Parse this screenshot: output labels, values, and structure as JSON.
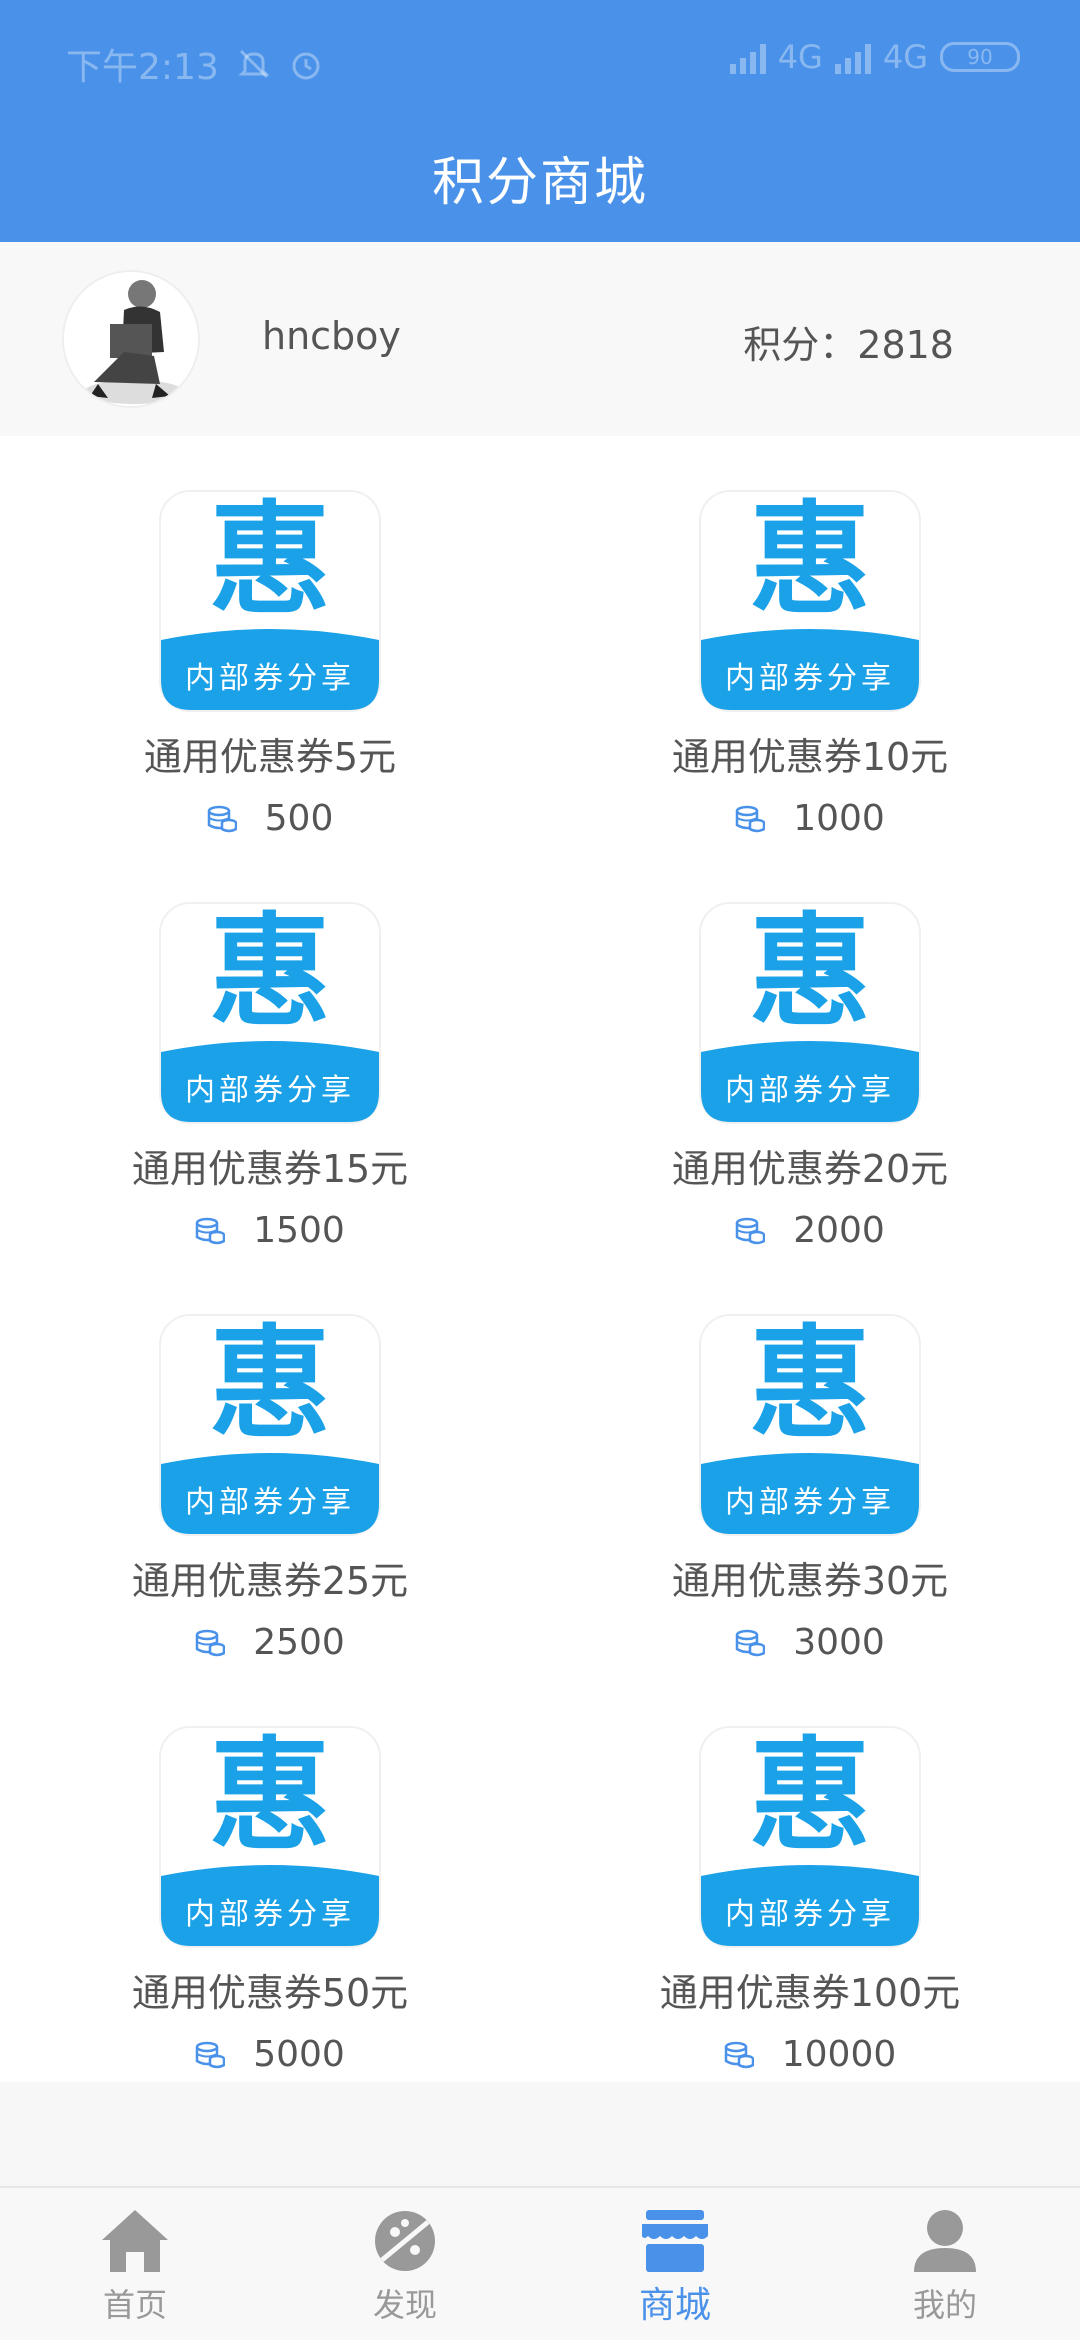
{
  "status": {
    "time": "下午2:13",
    "network1": "4G",
    "network2": "4G",
    "battery": "90"
  },
  "header": {
    "title": "积分商城"
  },
  "user": {
    "name": "hncboy",
    "points_label": "积分：2818"
  },
  "logo_text": {
    "big": "惠",
    "small": "内部券分享"
  },
  "items": [
    {
      "name": "通用优惠券5元",
      "price": "500"
    },
    {
      "name": "通用优惠券10元",
      "price": "1000"
    },
    {
      "name": "通用优惠券15元",
      "price": "1500"
    },
    {
      "name": "通用优惠券20元",
      "price": "2000"
    },
    {
      "name": "通用优惠券25元",
      "price": "2500"
    },
    {
      "name": "通用优惠券30元",
      "price": "3000"
    },
    {
      "name": "通用优惠券50元",
      "price": "5000"
    },
    {
      "name": "通用优惠券100元",
      "price": "10000"
    }
  ],
  "nav": [
    {
      "label": "首页",
      "icon": "home-icon"
    },
    {
      "label": "发现",
      "icon": "discover-icon"
    },
    {
      "label": "商城",
      "icon": "store-icon"
    },
    {
      "label": "我的",
      "icon": "user-icon"
    }
  ],
  "colors": {
    "header": "#4a92e9",
    "logo_blue": "#1aa1e8",
    "active": "#4a92e9"
  }
}
